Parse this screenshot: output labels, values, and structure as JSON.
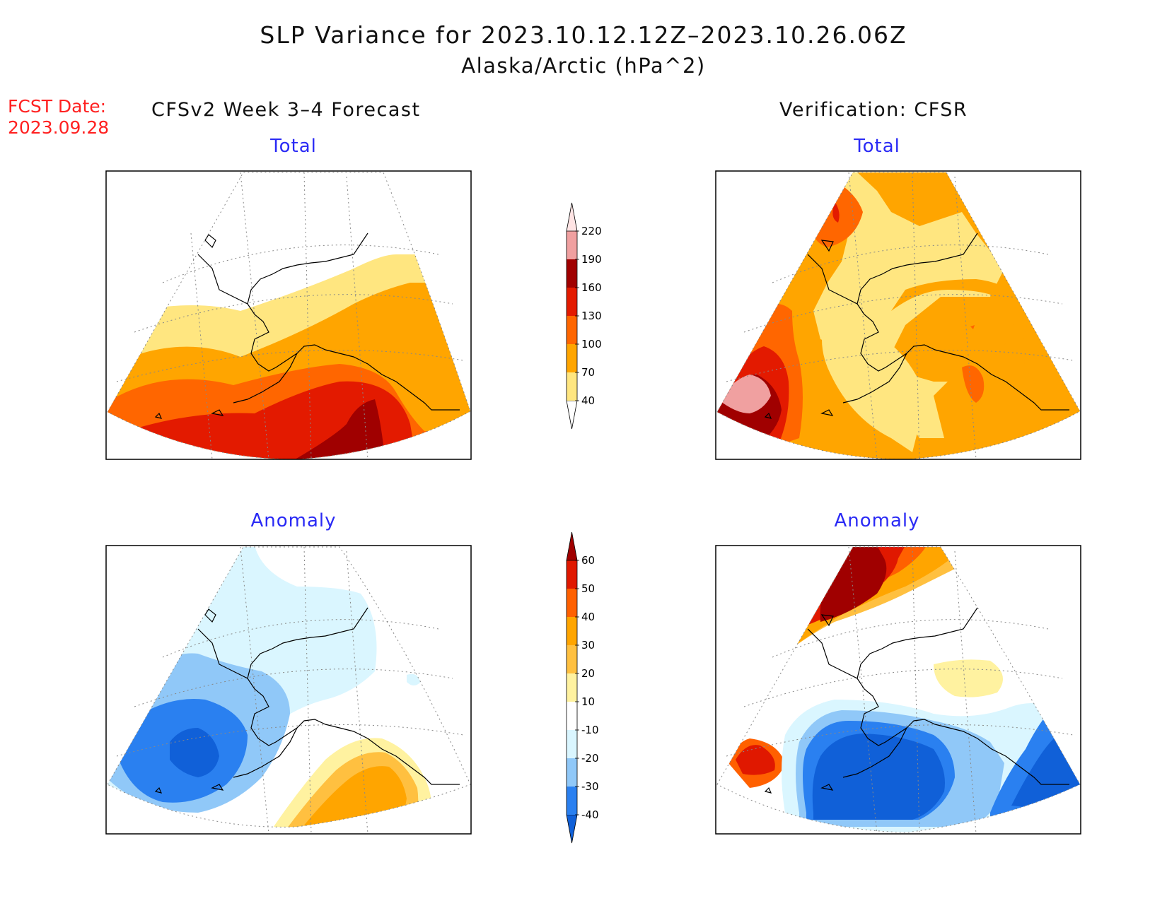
{
  "header": {
    "title": "SLP Variance for 2023.10.12.12Z–2023.10.26.06Z",
    "subtitle": "Alaska/Arctic (hPa^2)",
    "fcst_date_label": "FCST Date:",
    "fcst_date_value": "2023.09.28",
    "left_column_title": "CFSv2 Week 3–4 Forecast",
    "right_column_title": "Verification: CFSR"
  },
  "panels": {
    "forecast_total": "Total",
    "verification_total": "Total",
    "forecast_anomaly": "Anomaly",
    "verification_anomaly": "Anomaly"
  },
  "colorbars": {
    "total": {
      "labels": [
        "40",
        "70",
        "100",
        "130",
        "160",
        "190",
        "220"
      ],
      "colors": [
        "#ffffff",
        "#ffe680",
        "#ffa500",
        "#ff6600",
        "#e31a00",
        "#a00000",
        "#f0a0a0",
        "#ffe4e4"
      ]
    },
    "anomaly": {
      "labels": [
        "-40",
        "-30",
        "-20",
        "-10",
        "10",
        "20",
        "30",
        "40",
        "50",
        "60"
      ],
      "colors": [
        "#1060d8",
        "#2a80f0",
        "#90c8f8",
        "#daf6ff",
        "#ffffff",
        "#fff2a0",
        "#ffc040",
        "#ffa500",
        "#ff6000",
        "#e01800",
        "#a00000"
      ]
    }
  }
}
